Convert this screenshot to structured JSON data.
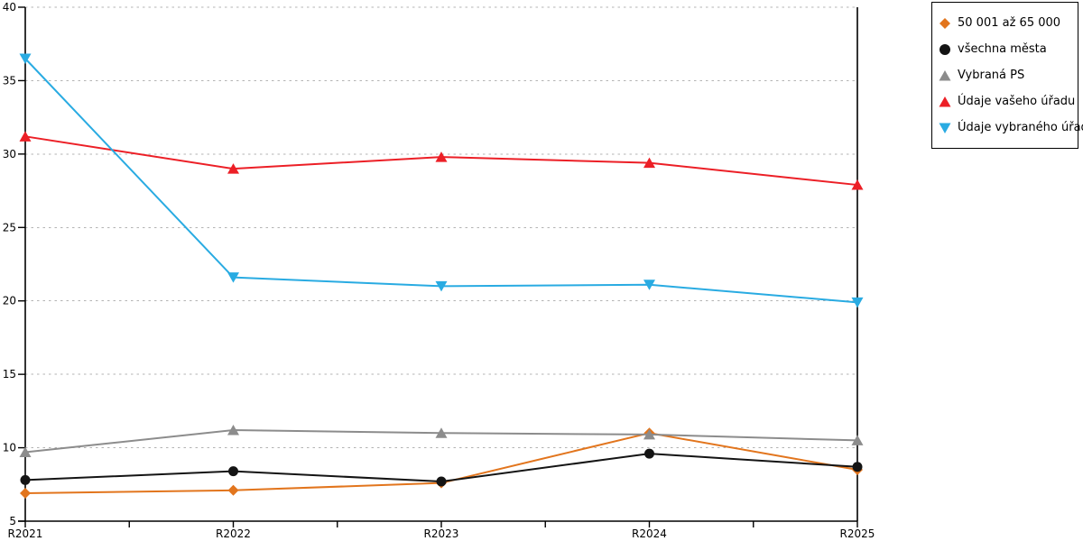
{
  "figure": {
    "background": "#ffffff",
    "axis_color": "#000000",
    "gridline_color": "#b3b3b3"
  },
  "legend": {
    "border_color": "#000000",
    "background": "#ffffff"
  },
  "chart_data": {
    "type": "line",
    "title": "",
    "xlabel": "",
    "ylabel": "",
    "categories": [
      "R2021",
      "R2022",
      "R2023",
      "R2024",
      "R2025"
    ],
    "series": [
      {
        "name": "50 001 až 65 000",
        "marker": "diamond",
        "color": "#E2751D",
        "values": [
          6.9,
          7.1,
          7.6,
          11.0,
          8.5
        ]
      },
      {
        "name": "všechna města",
        "marker": "circle",
        "color": "#141414",
        "values": [
          7.8,
          8.4,
          7.7,
          9.6,
          8.7
        ]
      },
      {
        "name": "Vybraná PS",
        "marker": "triangle-up",
        "color": "#8C8C8C",
        "values": [
          9.7,
          11.2,
          11.0,
          10.9,
          10.5
        ]
      },
      {
        "name": "Údaje vašeho úřadu",
        "marker": "triangle-up",
        "color": "#EC1F26",
        "values": [
          31.2,
          29.0,
          29.8,
          29.4,
          27.9
        ]
      },
      {
        "name": "Údaje vybraného úřadu",
        "marker": "triangle-down",
        "color": "#29ABE2",
        "values": [
          36.5,
          21.6,
          21.0,
          21.1,
          19.9
        ]
      }
    ],
    "ylim": [
      5,
      40
    ],
    "y_ticks": [
      5,
      10,
      15,
      20,
      25,
      30,
      35,
      40
    ],
    "grid": "horizontal-dashed",
    "legend_position": "outside-top-right"
  }
}
